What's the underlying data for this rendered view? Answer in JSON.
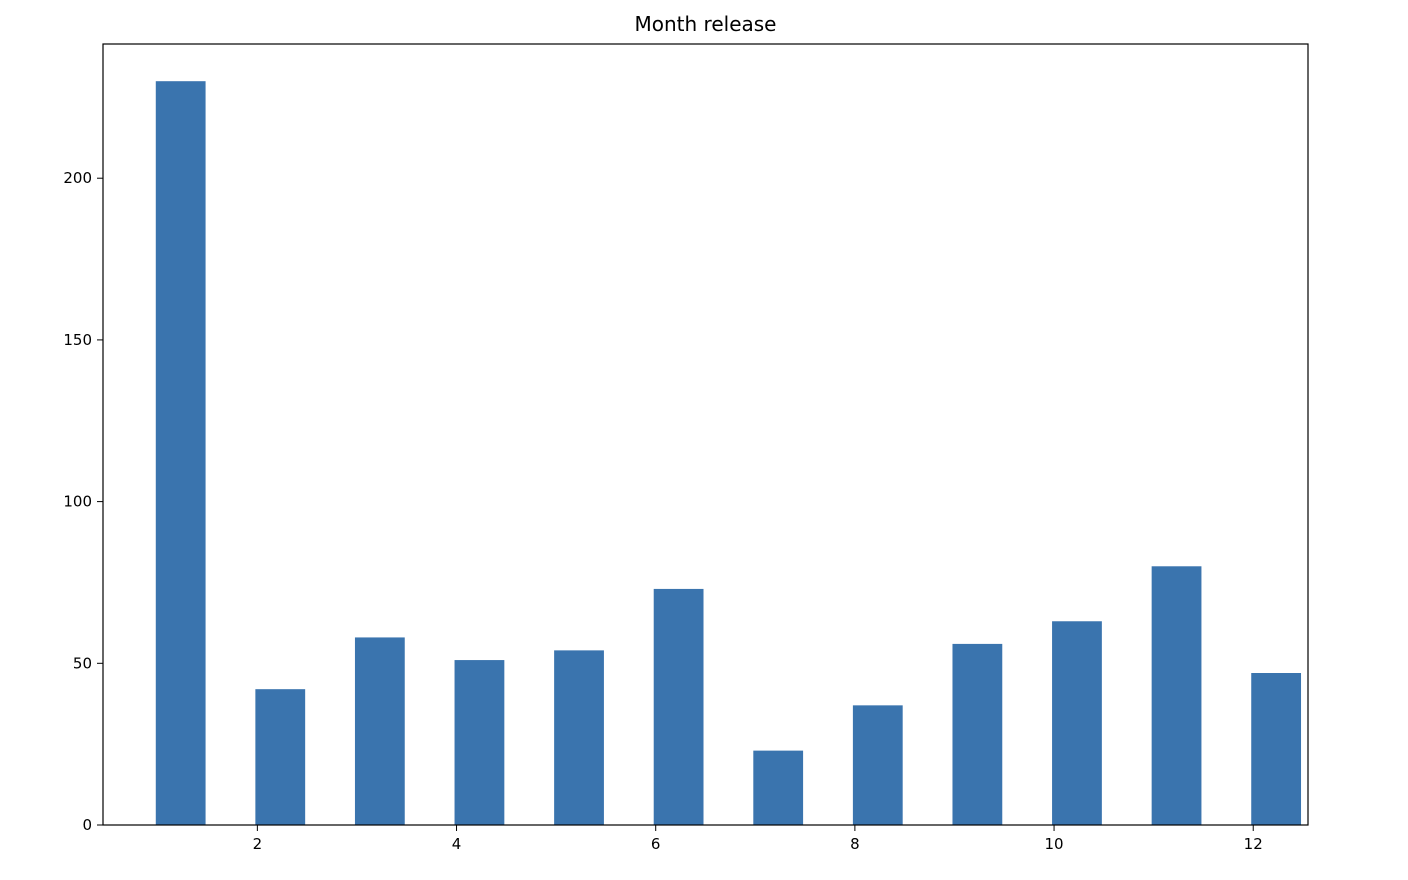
{
  "chart_data": {
    "type": "bar",
    "title": "Month release",
    "xlabel": "",
    "ylabel": "",
    "categories": [
      1,
      2,
      3,
      4,
      5,
      6,
      7,
      8,
      9,
      10,
      11,
      12
    ],
    "values": [
      230,
      42,
      58,
      51,
      54,
      73,
      23,
      37,
      56,
      63,
      80,
      47
    ],
    "xlim": [
      0.45,
      12.55
    ],
    "ylim": [
      0,
      241.5
    ],
    "xticks": [
      2,
      4,
      6,
      8,
      10,
      12
    ],
    "yticks": [
      0,
      50,
      100,
      150,
      200
    ],
    "bar_color": "#3a74ae",
    "grid": false,
    "legend": "none"
  }
}
